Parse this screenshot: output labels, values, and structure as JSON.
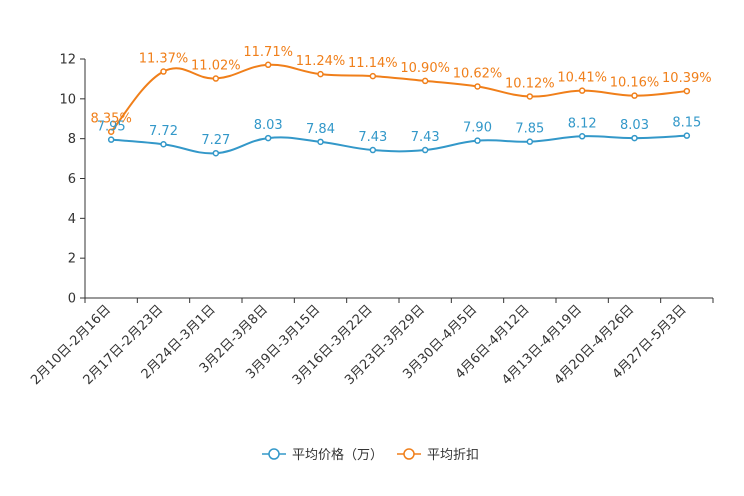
{
  "chart_data": {
    "type": "line",
    "title": "",
    "xlabel": "",
    "ylabel": "",
    "ylim": [
      0,
      12
    ],
    "yticks": [
      0,
      2,
      4,
      6,
      8,
      10,
      12
    ],
    "grid": false,
    "legend_position": "bottom-center",
    "categories": [
      "2月10日-2月16日",
      "2月17日-2月23日",
      "2月24日-3月1日",
      "3月2日-3月8日",
      "3月9日-3月15日",
      "3月16日-3月22日",
      "3月23日-3月29日",
      "3月30日-4月5日",
      "4月6日-4月12日",
      "4月13日-4月19日",
      "4月20日-4月26日",
      "4月27日-5月3日"
    ],
    "series": [
      {
        "name": "平均价格（万）",
        "color": "#3398c9",
        "values": [
          7.95,
          7.72,
          7.27,
          8.03,
          7.84,
          7.43,
          7.43,
          7.9,
          7.85,
          8.12,
          8.03,
          8.15
        ],
        "labels": [
          "7.95",
          "7.72",
          "7.27",
          "8.03",
          "7.84",
          "7.43",
          "7.43",
          "7.90",
          "7.85",
          "8.12",
          "8.03",
          "8.15"
        ]
      },
      {
        "name": "平均折扣",
        "color": "#f07f1a",
        "values": [
          8.35,
          11.37,
          11.02,
          11.71,
          11.24,
          11.14,
          10.9,
          10.62,
          10.12,
          10.41,
          10.16,
          10.39
        ],
        "labels": [
          "8.35%",
          "11.37%",
          "11.02%",
          "11.71%",
          "11.24%",
          "11.14%",
          "10.90%",
          "10.62%",
          "10.12%",
          "10.41%",
          "10.16%",
          "10.39%"
        ]
      }
    ]
  }
}
